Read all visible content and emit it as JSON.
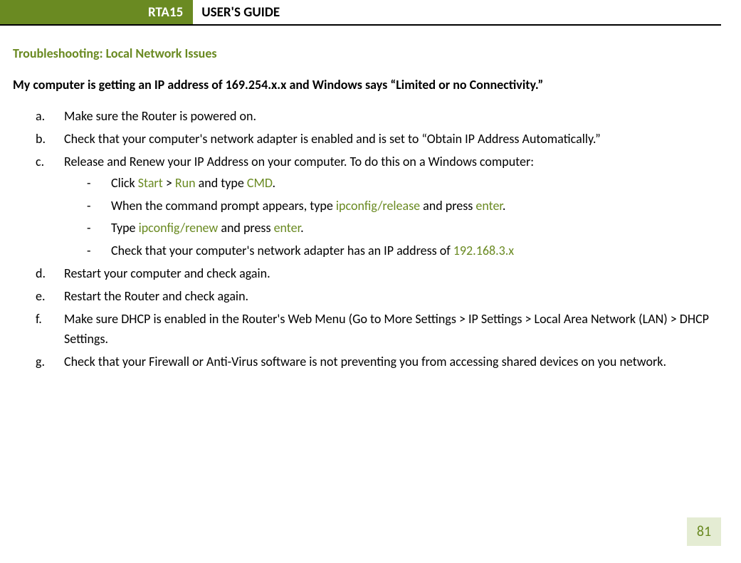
{
  "header": {
    "badge": "RTA15",
    "title": "USER'S GUIDE"
  },
  "section_heading": "Troubleshooting: Local Network Issues",
  "question": "My computer is getting an IP address of 169.254.x.x and Windows says “Limited or no Connectivity.”",
  "steps": {
    "a": {
      "marker": "a.",
      "text": "Make sure the Router is powered on."
    },
    "b": {
      "marker": "b.",
      "text": "Check that your computer's network adapter is enabled and is set to “Obtain IP Address Automatically.”"
    },
    "c": {
      "marker": "c.",
      "text": "Release and Renew your IP Address on your computer.  To do this on a Windows computer:",
      "sub": {
        "s1": {
          "pre1": "Click ",
          "g1": "Start",
          "mid1": " > ",
          "g2": "Run",
          "mid2": " and type ",
          "g3": "CMD",
          "post": "."
        },
        "s2": {
          "pre": "When the command prompt appears, type ",
          "g1": "ipconfig/release",
          "mid": " and press ",
          "g2": "enter",
          "post": "."
        },
        "s3": {
          "pre": "Type ",
          "g1": "ipconfig/renew",
          "mid": " and press ",
          "g2": "enter",
          "post": "."
        },
        "s4": {
          "pre": "Check that your computer's network adapter has an IP address of ",
          "g1": "192.168.3.x"
        }
      }
    },
    "d": {
      "marker": "d.",
      "text": "Restart your computer and check again."
    },
    "e": {
      "marker": "e.",
      "text": "Restart the Router and check again."
    },
    "f": {
      "marker": "f.",
      "text": "Make sure DHCP is enabled in the Router's Web Menu (Go to More Settings > IP Settings > Local Area Network (LAN) > DHCP Settings."
    },
    "g": {
      "marker": "g.",
      "text": "Check that your Firewall or Anti-Virus software is not preventing you from accessing shared devices on you network."
    }
  },
  "page_number": "81",
  "colors": {
    "brand_green": "#6a8a22",
    "page_badge_bg": "#e4ecd3",
    "text": "#000000",
    "background": "#ffffff"
  }
}
